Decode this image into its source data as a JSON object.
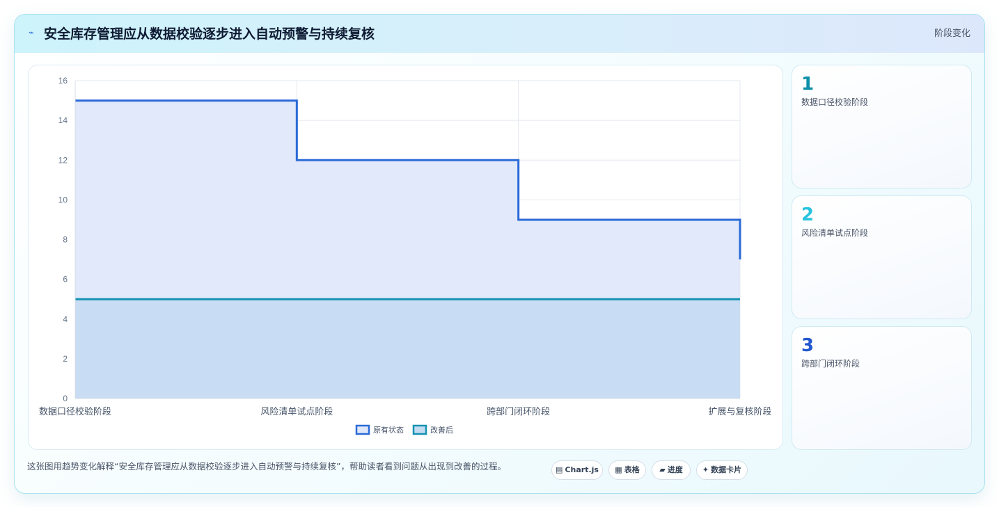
{
  "header": {
    "title": "安全库存管理应从数据校验逐步进入自动预警与持续复核",
    "tag": "阶段变化",
    "icon": "trend-icon"
  },
  "chart_data": {
    "type": "line",
    "step": true,
    "categories": [
      "数据口径校验阶段",
      "风险清单试点阶段",
      "跨部门闭环阶段",
      "扩展与复核阶段"
    ],
    "series": [
      {
        "name": "原有状态",
        "values": [
          15,
          12,
          9,
          7
        ],
        "color": "#2b6ad7",
        "fill": "#dfe8fa"
      },
      {
        "name": "改善后",
        "values": [
          5,
          5,
          5,
          5
        ],
        "color": "#1592b2",
        "fill": "#c3dbf1"
      }
    ],
    "ylim": [
      0,
      16
    ],
    "yticks": [
      0,
      2,
      4,
      6,
      8,
      10,
      12,
      14,
      16
    ],
    "grid": true,
    "legend": "bottom"
  },
  "stages": [
    {
      "num": "1",
      "name": "数据口径校验阶段",
      "color": "#0c8fa8"
    },
    {
      "num": "2",
      "name": "风险清单试点阶段",
      "color": "#28c3df"
    },
    {
      "num": "3",
      "name": "跨部门闭环阶段",
      "color": "#2257cf"
    }
  ],
  "footer": {
    "description": "这张图用趋势变化解释“安全库存管理应从数据校验逐步进入自动预警与持续复核”，帮助读者看到问题从出现到改善的过程。",
    "pills": [
      {
        "icon": "chart-icon",
        "glyph": "▤",
        "label": "Chart.js"
      },
      {
        "icon": "table-icon",
        "glyph": "▦",
        "label": "表格"
      },
      {
        "icon": "progress-icon",
        "glyph": "▰",
        "label": "进度"
      },
      {
        "icon": "sparkle-icon",
        "glyph": "✦",
        "label": "数据卡片"
      }
    ]
  }
}
